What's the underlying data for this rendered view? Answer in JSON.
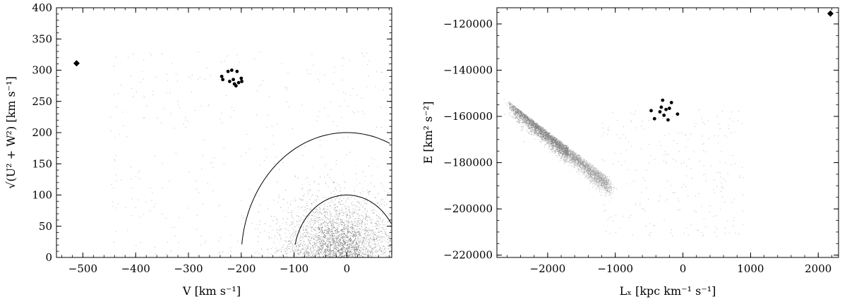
{
  "chart_data": [
    {
      "type": "scatter",
      "title": "",
      "xlabel": "V [km s⁻¹]",
      "ylabel": "√(U² + W²) [km s⁻¹]",
      "xlim": [
        -550,
        85
      ],
      "ylim": [
        0,
        400
      ],
      "x_ticks": [
        -500,
        -400,
        -300,
        -200,
        -100,
        0
      ],
      "y_ticks": [
        0,
        50,
        100,
        150,
        200,
        250,
        300,
        350,
        400
      ],
      "x_tick_labels": [
        "−500",
        "−400",
        "−300",
        "−200",
        "−100",
        "0"
      ],
      "y_tick_labels": [
        "0",
        "50",
        "100",
        "150",
        "200",
        "250",
        "300",
        "350",
        "400"
      ],
      "grid": false,
      "series": [
        {
          "marker": "diamond",
          "color": "#000000",
          "x": [
            -512
          ],
          "y": [
            311
          ]
        },
        {
          "marker": "circle",
          "color": "#000000",
          "x": [
            -237,
            -235,
            -225,
            -222,
            -218,
            -215,
            -213,
            -210,
            -208,
            -205,
            -200,
            -199
          ],
          "y": [
            290,
            285,
            298,
            282,
            300,
            285,
            278,
            275,
            298,
            280,
            287,
            282
          ]
        },
        {
          "marker": "dense-cloud",
          "color": "#808080",
          "center": [
            -15,
            40
          ],
          "spread": [
            55,
            45
          ],
          "count": 6000
        }
      ],
      "circles": [
        {
          "center_x": 0,
          "center_y": 0,
          "radius": 200,
          "color": "#000000"
        },
        {
          "center_x": 0,
          "center_y": 0,
          "radius": 100,
          "color": "#000000"
        }
      ]
    },
    {
      "type": "scatter",
      "title": "",
      "xlabel": "Lₓ [kpc km⁻¹ s⁻¹]",
      "ylabel": "E [km² s⁻²]",
      "xlim": [
        -2750,
        2300
      ],
      "ylim": [
        -221000,
        -113000
      ],
      "x_ticks": [
        -2000,
        -1000,
        0,
        1000,
        2000
      ],
      "y_ticks": [
        -220000,
        -200000,
        -180000,
        -160000,
        -140000,
        -120000
      ],
      "x_tick_labels": [
        "−2000",
        "−1000",
        "0",
        "1000",
        "2000"
      ],
      "y_tick_labels": [
        "−220000",
        "−200000",
        "−180000",
        "−160000",
        "−140000",
        "−120000"
      ],
      "grid": false,
      "series": [
        {
          "marker": "diamond",
          "color": "#000000",
          "x": [
            2180
          ],
          "y": [
            -115500
          ]
        },
        {
          "marker": "circle",
          "color": "#000000",
          "x": [
            -470,
            -420,
            -340,
            -320,
            -300,
            -280,
            -250,
            -220,
            -200,
            -170,
            -80
          ],
          "y": [
            -157500,
            -161000,
            -158000,
            -156000,
            -153000,
            -159500,
            -157000,
            -161500,
            -156500,
            -154000,
            -159000
          ]
        },
        {
          "marker": "dense-band",
          "color": "#808080",
          "x_range": [
            -2550,
            -1100
          ],
          "count": 5000
        }
      ]
    }
  ]
}
